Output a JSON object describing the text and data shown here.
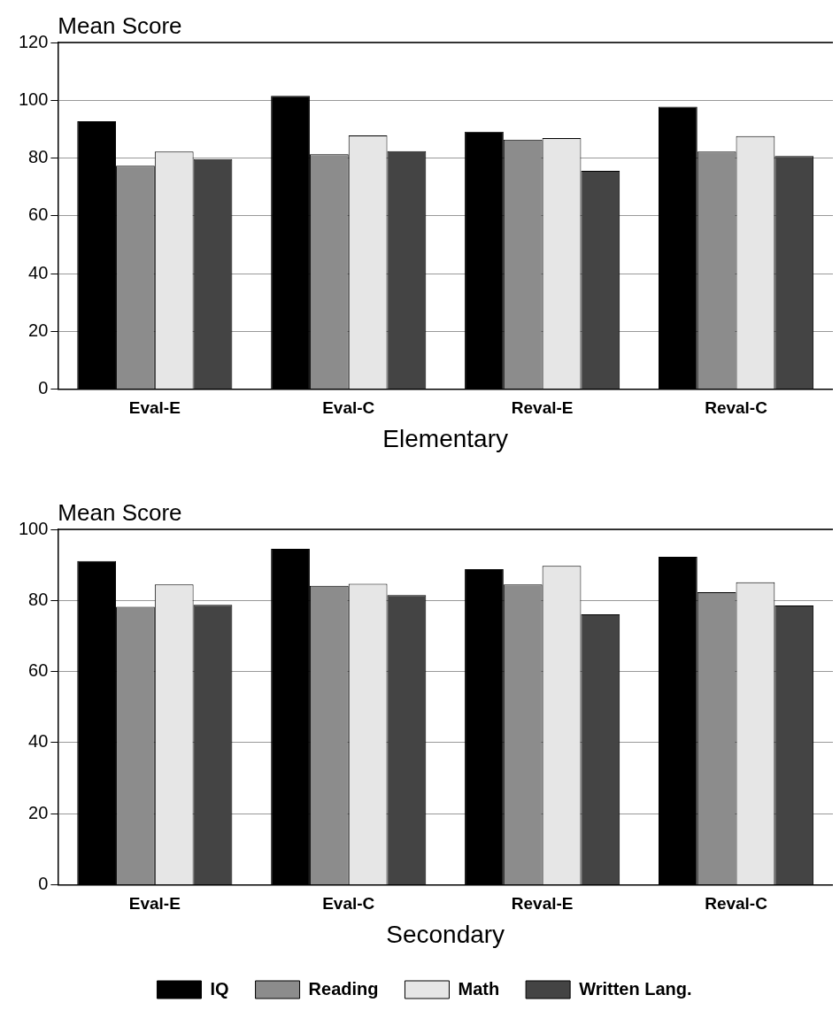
{
  "chart_data": [
    {
      "type": "bar",
      "ylabel": "Mean Score",
      "xlabel": "Elementary",
      "categories": [
        "Eval-E",
        "Eval-C",
        "Reval-E",
        "Reval-C"
      ],
      "ylim": [
        0,
        120
      ],
      "yticks": [
        0,
        20,
        40,
        60,
        80,
        100,
        120
      ],
      "grid": "y",
      "legend": false,
      "series": [
        {
          "color": "#000000",
          "values": [
            92.7,
            101.5,
            89.1,
            97.8
          ]
        },
        {
          "color": "#8c8c8c",
          "values": [
            77.3,
            81.3,
            86.4,
            82.2
          ]
        },
        {
          "color": "#e6e6e6",
          "values": [
            82.2,
            87.8,
            86.9,
            87.6
          ]
        },
        {
          "color": "#444444",
          "values": [
            79.6,
            82.4,
            75.6,
            80.7
          ]
        }
      ]
    },
    {
      "type": "bar",
      "ylabel": "Mean Score",
      "xlabel": "Secondary",
      "categories": [
        "Eval-E",
        "Eval-C",
        "Reval-E",
        "Reval-C"
      ],
      "ylim": [
        0,
        100
      ],
      "yticks": [
        0,
        20,
        40,
        60,
        80,
        100
      ],
      "grid": "y",
      "legend": "bottom",
      "series": [
        {
          "name": "IQ",
          "color": "#000000",
          "values": [
            91.1,
            94.5,
            88.8,
            92.3
          ]
        },
        {
          "name": "Reading",
          "color": "#8c8c8c",
          "values": [
            78.2,
            84.1,
            84.5,
            82.3
          ]
        },
        {
          "name": "Math",
          "color": "#e6e6e6",
          "values": [
            84.5,
            84.7,
            89.7,
            85.1
          ]
        },
        {
          "name": "Written Lang.",
          "color": "#444444",
          "values": [
            78.8,
            81.5,
            76.1,
            78.6
          ]
        }
      ]
    }
  ]
}
